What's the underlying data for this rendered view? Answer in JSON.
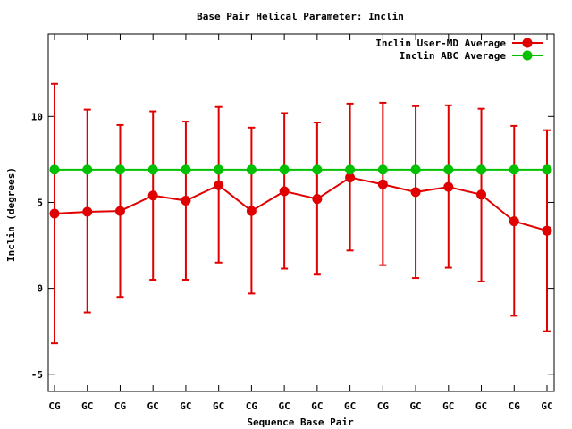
{
  "chart_data": {
    "type": "line",
    "title": "Base Pair Helical Parameter: Inclin",
    "xlabel": "Sequence Base Pair",
    "ylabel": "Inclin (degrees)",
    "categories": [
      "CG",
      "GC",
      "CG",
      "GC",
      "GC",
      "GC",
      "CG",
      "GC",
      "GC",
      "GC",
      "CG",
      "GC",
      "GC",
      "GC",
      "CG",
      "GC"
    ],
    "ylim": [
      -6,
      14.8
    ],
    "yticks": [
      -5,
      0,
      5,
      10
    ],
    "ytick_labels": [
      "-5",
      "0",
      "5",
      "10"
    ],
    "legend_position": "top-right",
    "series": [
      {
        "name": "Inclin User-MD Average",
        "color": "#e00000",
        "values": [
          4.35,
          4.45,
          4.5,
          5.4,
          5.1,
          6.0,
          4.5,
          5.65,
          5.2,
          6.45,
          6.05,
          5.6,
          5.9,
          5.45,
          3.9,
          3.35
        ],
        "error_low": [
          -3.2,
          -1.4,
          -0.5,
          0.5,
          0.5,
          1.5,
          -0.3,
          1.15,
          0.8,
          2.2,
          1.35,
          0.6,
          1.2,
          0.4,
          -1.6,
          -2.5
        ],
        "error_high": [
          11.9,
          10.4,
          9.5,
          10.3,
          9.7,
          10.55,
          9.35,
          10.2,
          9.65,
          10.75,
          10.8,
          10.6,
          10.65,
          10.45,
          9.45,
          9.2
        ]
      },
      {
        "name": "Inclin ABC Average",
        "color": "#00c000",
        "values": [
          6.9,
          6.9,
          6.9,
          6.9,
          6.9,
          6.9,
          6.9,
          6.9,
          6.9,
          6.9,
          6.9,
          6.9,
          6.9,
          6.9,
          6.9,
          6.9
        ]
      }
    ]
  }
}
